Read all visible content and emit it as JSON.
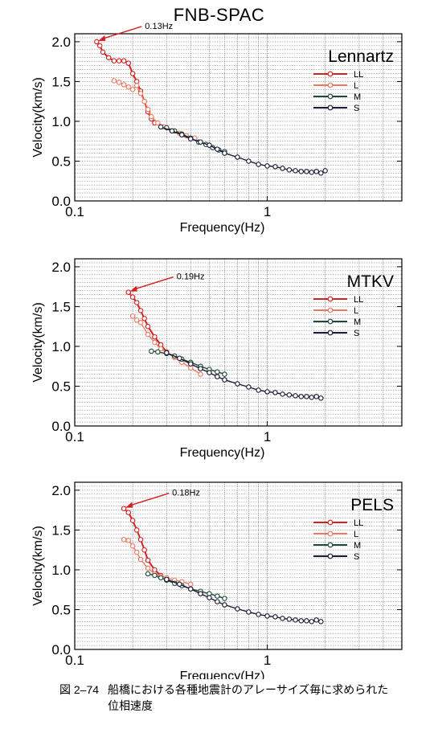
{
  "title": "FNB-SPAC",
  "caption": {
    "number": "図 2–74",
    "line1": "船橋における各種地震計のアレーサイズ毎に求められた",
    "line2": "位相速度"
  },
  "colors": {
    "LL": "#d42020",
    "L": "#f07860",
    "M": "#1c4a34",
    "S": "#1a1a38"
  },
  "chart_data": [
    {
      "type": "line",
      "title": "Lennartz",
      "xlabel": "Frequency(Hz)",
      "ylabel": "Velocity(km/s)",
      "xscale": "log",
      "xlim": [
        0.1,
        5
      ],
      "ylim": [
        0,
        2.1
      ],
      "xticks": [
        "0.1",
        "1"
      ],
      "yticks": [
        "0.0",
        "0.5",
        "1.0",
        "1.5",
        "2.0"
      ],
      "annotation": {
        "text": "0.13Hz",
        "x": 0.13,
        "y": 2.0
      },
      "legend": "right",
      "series": [
        {
          "name": "LL",
          "x": [
            0.13,
            0.135,
            0.14,
            0.15,
            0.16,
            0.17,
            0.18,
            0.19,
            0.2,
            0.21,
            0.22,
            0.23,
            0.24,
            0.25,
            0.26
          ],
          "y": [
            2.0,
            1.95,
            1.87,
            1.8,
            1.76,
            1.76,
            1.76,
            1.73,
            1.6,
            1.5,
            1.38,
            1.25,
            1.12,
            1.03,
            0.98
          ]
        },
        {
          "name": "L",
          "x": [
            0.16,
            0.17,
            0.18,
            0.19,
            0.2,
            0.21,
            0.22,
            0.23,
            0.24,
            0.25,
            0.27,
            0.29,
            0.32,
            0.35,
            0.38,
            0.42
          ],
          "y": [
            1.51,
            1.49,
            1.46,
            1.43,
            1.4,
            1.45,
            1.35,
            1.25,
            1.15,
            1.06,
            0.98,
            0.93,
            0.88,
            0.85,
            0.82,
            0.79
          ]
        },
        {
          "name": "M",
          "x": [
            0.3,
            0.33,
            0.36,
            0.4,
            0.44,
            0.48,
            0.52,
            0.56,
            0.6
          ],
          "y": [
            0.92,
            0.88,
            0.84,
            0.79,
            0.74,
            0.71,
            0.67,
            0.64,
            0.62
          ]
        },
        {
          "name": "S",
          "x": [
            0.28,
            0.32,
            0.36,
            0.4,
            0.45,
            0.5,
            0.55,
            0.6,
            0.7,
            0.8,
            0.9,
            1.0,
            1.1,
            1.2,
            1.3,
            1.4,
            1.5,
            1.6,
            1.7,
            1.8,
            1.9,
            2.0
          ],
          "y": [
            0.93,
            0.88,
            0.83,
            0.78,
            0.74,
            0.7,
            0.65,
            0.6,
            0.55,
            0.5,
            0.46,
            0.44,
            0.43,
            0.41,
            0.39,
            0.38,
            0.37,
            0.37,
            0.36,
            0.37,
            0.35,
            0.38
          ]
        }
      ]
    },
    {
      "type": "line",
      "title": "MTKV",
      "xlabel": "Frequency(Hz)",
      "ylabel": "Velocity(km/s)",
      "xscale": "log",
      "xlim": [
        0.1,
        5
      ],
      "ylim": [
        0,
        2.1
      ],
      "xticks": [
        "0.1",
        "1"
      ],
      "yticks": [
        "0.0",
        "0.5",
        "1.0",
        "1.5",
        "2.0"
      ],
      "annotation": {
        "text": "0.19Hz",
        "x": 0.19,
        "y": 1.68
      },
      "legend": "right",
      "series": [
        {
          "name": "LL",
          "x": [
            0.19,
            0.2,
            0.21,
            0.22,
            0.23,
            0.24,
            0.26,
            0.28,
            0.3
          ],
          "y": [
            1.68,
            1.62,
            1.55,
            1.45,
            1.35,
            1.25,
            1.12,
            1.02,
            0.93
          ]
        },
        {
          "name": "L",
          "x": [
            0.2,
            0.21,
            0.22,
            0.24,
            0.26,
            0.28,
            0.3,
            0.33,
            0.36,
            0.4,
            0.45
          ],
          "y": [
            1.38,
            1.33,
            1.3,
            1.15,
            1.05,
            0.97,
            0.92,
            0.86,
            0.8,
            0.73,
            0.65
          ]
        },
        {
          "name": "M",
          "x": [
            0.25,
            0.27,
            0.3,
            0.33,
            0.36,
            0.4,
            0.45,
            0.5,
            0.55,
            0.6
          ],
          "y": [
            0.94,
            0.93,
            0.91,
            0.88,
            0.84,
            0.8,
            0.75,
            0.71,
            0.68,
            0.65
          ]
        },
        {
          "name": "S",
          "x": [
            0.3,
            0.35,
            0.4,
            0.45,
            0.5,
            0.55,
            0.6,
            0.7,
            0.8,
            0.9,
            1.0,
            1.1,
            1.2,
            1.3,
            1.4,
            1.5,
            1.6,
            1.7,
            1.8,
            1.9
          ],
          "y": [
            0.92,
            0.85,
            0.78,
            0.72,
            0.67,
            0.62,
            0.58,
            0.53,
            0.49,
            0.45,
            0.43,
            0.42,
            0.4,
            0.39,
            0.38,
            0.37,
            0.37,
            0.36,
            0.37,
            0.35
          ]
        }
      ]
    },
    {
      "type": "line",
      "title": "PELS",
      "xlabel": "Frequency(Hz)",
      "ylabel": "Velocity(km/s)",
      "xscale": "log",
      "xlim": [
        0.1,
        5
      ],
      "ylim": [
        0,
        2.1
      ],
      "xticks": [
        "0.1",
        "1"
      ],
      "yticks": [
        "0.0",
        "0.5",
        "1.0",
        "1.5",
        "2.0"
      ],
      "annotation": {
        "text": "0.18Hz",
        "x": 0.18,
        "y": 1.77
      },
      "legend": "right",
      "series": [
        {
          "name": "LL",
          "x": [
            0.18,
            0.19,
            0.2,
            0.21,
            0.22,
            0.23,
            0.24,
            0.26,
            0.28
          ],
          "y": [
            1.77,
            1.72,
            1.62,
            1.5,
            1.38,
            1.25,
            1.12,
            1.0,
            0.93
          ]
        },
        {
          "name": "L",
          "x": [
            0.18,
            0.19,
            0.2,
            0.21,
            0.22,
            0.24,
            0.26,
            0.28,
            0.3,
            0.33,
            0.36,
            0.4
          ],
          "y": [
            1.38,
            1.37,
            1.3,
            1.22,
            1.13,
            1.02,
            0.95,
            0.92,
            0.9,
            0.87,
            0.85,
            0.82
          ]
        },
        {
          "name": "M",
          "x": [
            0.24,
            0.26,
            0.28,
            0.3,
            0.33,
            0.36,
            0.4,
            0.45,
            0.5,
            0.55,
            0.6
          ],
          "y": [
            0.95,
            0.93,
            0.9,
            0.87,
            0.83,
            0.8,
            0.76,
            0.73,
            0.7,
            0.67,
            0.64
          ]
        },
        {
          "name": "S",
          "x": [
            0.3,
            0.35,
            0.4,
            0.45,
            0.5,
            0.55,
            0.6,
            0.7,
            0.8,
            0.9,
            1.0,
            1.1,
            1.2,
            1.3,
            1.4,
            1.5,
            1.6,
            1.7,
            1.8,
            1.9
          ],
          "y": [
            0.88,
            0.82,
            0.76,
            0.7,
            0.65,
            0.6,
            0.56,
            0.51,
            0.47,
            0.44,
            0.42,
            0.41,
            0.39,
            0.38,
            0.37,
            0.36,
            0.36,
            0.35,
            0.37,
            0.35
          ]
        }
      ]
    }
  ]
}
